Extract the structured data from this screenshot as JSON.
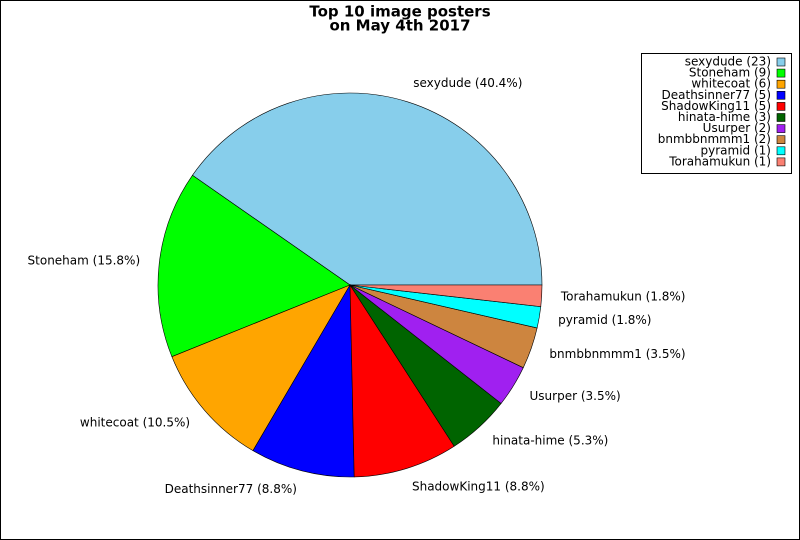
{
  "chart_data": {
    "type": "pie",
    "title": "Top 10 image posters",
    "subtitle": "on May 4th 2017",
    "categories": [
      "sexydude (40.4%)",
      "Stoneham (15.8%)",
      "whitecoat (10.5%)",
      "Deathsinner77 (8.8%)",
      "ShadowKing11 (8.8%)",
      "hinata-hime (5.3%)",
      "Usurper (3.5%)",
      "bnmbbnmmm1 (3.5%)",
      "pyramid (1.8%)",
      "Torahamukun (1.8%)"
    ],
    "values": [
      40.4,
      15.8,
      10.5,
      8.8,
      8.8,
      5.3,
      3.5,
      3.5,
      1.8,
      1.8
    ],
    "legend_labels": [
      "sexydude (23)",
      "Stoneham (9)",
      "whitecoat (6)",
      "Deathsinner77 (5)",
      "ShadowKing11 (5)",
      "hinata-hime (3)",
      "Usurper (2)",
      "bnmbbnmmm1 (2)",
      "pyramid (1)",
      "Torahamukun (1)"
    ],
    "colors": [
      "#87ceeb",
      "#00ff00",
      "#ffa500",
      "#0000ff",
      "#ff0000",
      "#006400",
      "#a020f0",
      "#cd853f",
      "#00ffff",
      "#fa8072"
    ],
    "legend_position": "upper right"
  }
}
